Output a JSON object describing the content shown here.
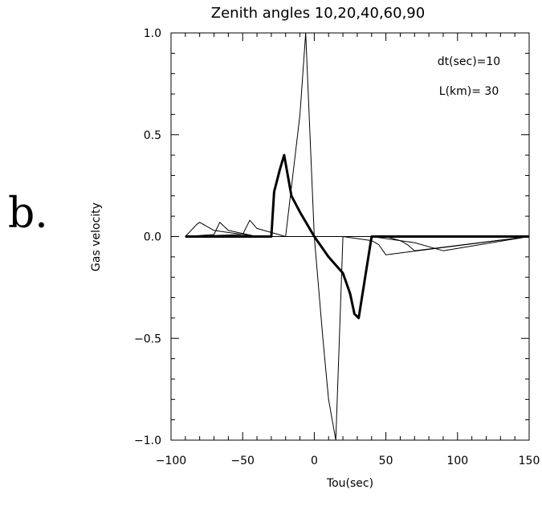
{
  "panel_letter": "b.",
  "chart_data": {
    "type": "line",
    "title": "Zenith angles 10,20,40,60,90",
    "xlabel": "Tou(sec)",
    "ylabel": "Gas velocity",
    "xlim": [
      -100,
      150
    ],
    "ylim": [
      -1.0,
      1.0
    ],
    "xticks": [
      -100,
      -50,
      0,
      50,
      100,
      150
    ],
    "xtick_labels": [
      "−100",
      "−50",
      "0",
      "50",
      "100",
      "150"
    ],
    "yticks": [
      -1.0,
      -0.5,
      0.0,
      0.5,
      1.0
    ],
    "ytick_labels": [
      "−1.0",
      "−0.5",
      "0.0",
      "0.5",
      "1.0"
    ],
    "grid": false,
    "annotations": [
      "dt(sec)=10",
      "L(km)= 30"
    ],
    "series": [
      {
        "x": [
          -90,
          -82,
          -80,
          -70,
          -40,
          50,
          60,
          70,
          85,
          90,
          150
        ],
        "y": [
          0,
          0.06,
          0.07,
          0.03,
          0.0,
          0.0,
          -0.02,
          -0.03,
          -0.06,
          -0.07,
          0
        ]
      },
      {
        "x": [
          -90,
          -70,
          -66,
          -60,
          -40,
          40,
          60,
          65,
          70,
          150
        ],
        "y": [
          0,
          0.01,
          0.07,
          0.03,
          0.0,
          0.0,
          -0.02,
          -0.04,
          -0.07,
          0
        ]
      },
      {
        "x": [
          -90,
          -50,
          -45,
          -40,
          -20,
          20,
          40,
          45,
          50,
          150
        ],
        "y": [
          0,
          0.01,
          0.08,
          0.04,
          0.0,
          0.0,
          -0.02,
          -0.04,
          -0.09,
          0
        ]
      },
      {
        "x": [
          -90,
          -30,
          -28,
          -24,
          -21,
          -16,
          -10,
          0,
          10,
          20,
          25,
          28,
          31,
          40,
          150
        ],
        "y": [
          0,
          0,
          0.22,
          0.33,
          0.4,
          0.2,
          0.12,
          0.0,
          -0.1,
          -0.18,
          -0.28,
          -0.38,
          -0.4,
          0,
          0
        ],
        "bold": true
      },
      {
        "x": [
          -90,
          -20,
          -10,
          -6,
          0,
          6,
          10,
          15,
          20,
          150
        ],
        "y": [
          0,
          0,
          0.6,
          1.0,
          0.0,
          -0.5,
          -0.8,
          -1.0,
          0,
          0
        ]
      }
    ]
  }
}
